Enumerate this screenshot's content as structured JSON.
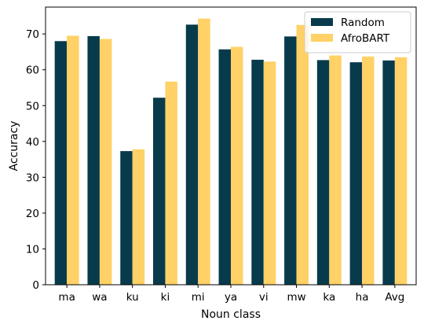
{
  "chart_data": {
    "type": "bar",
    "categories": [
      "ma",
      "wa",
      "ku",
      "ki",
      "mi",
      "ya",
      "vi",
      "mw",
      "ka",
      "ha",
      "Avg"
    ],
    "series": [
      {
        "name": "Random",
        "values": [
          68.0,
          69.4,
          37.3,
          52.2,
          72.6,
          65.7,
          62.8,
          69.3,
          62.7,
          62.1,
          62.6
        ]
      },
      {
        "name": "AfroBART",
        "values": [
          69.5,
          68.6,
          37.8,
          56.7,
          74.3,
          66.4,
          62.3,
          72.5,
          64.0,
          63.7,
          63.5
        ]
      }
    ],
    "colors": [
      "#073b4c",
      "#ffd166"
    ],
    "xlabel": "Noun class",
    "ylabel": "Accuracy",
    "ylim": [
      0,
      77.5
    ],
    "yticks": [
      0,
      10,
      20,
      30,
      40,
      50,
      60,
      70
    ],
    "legend_position": "top-right",
    "grid": false
  }
}
